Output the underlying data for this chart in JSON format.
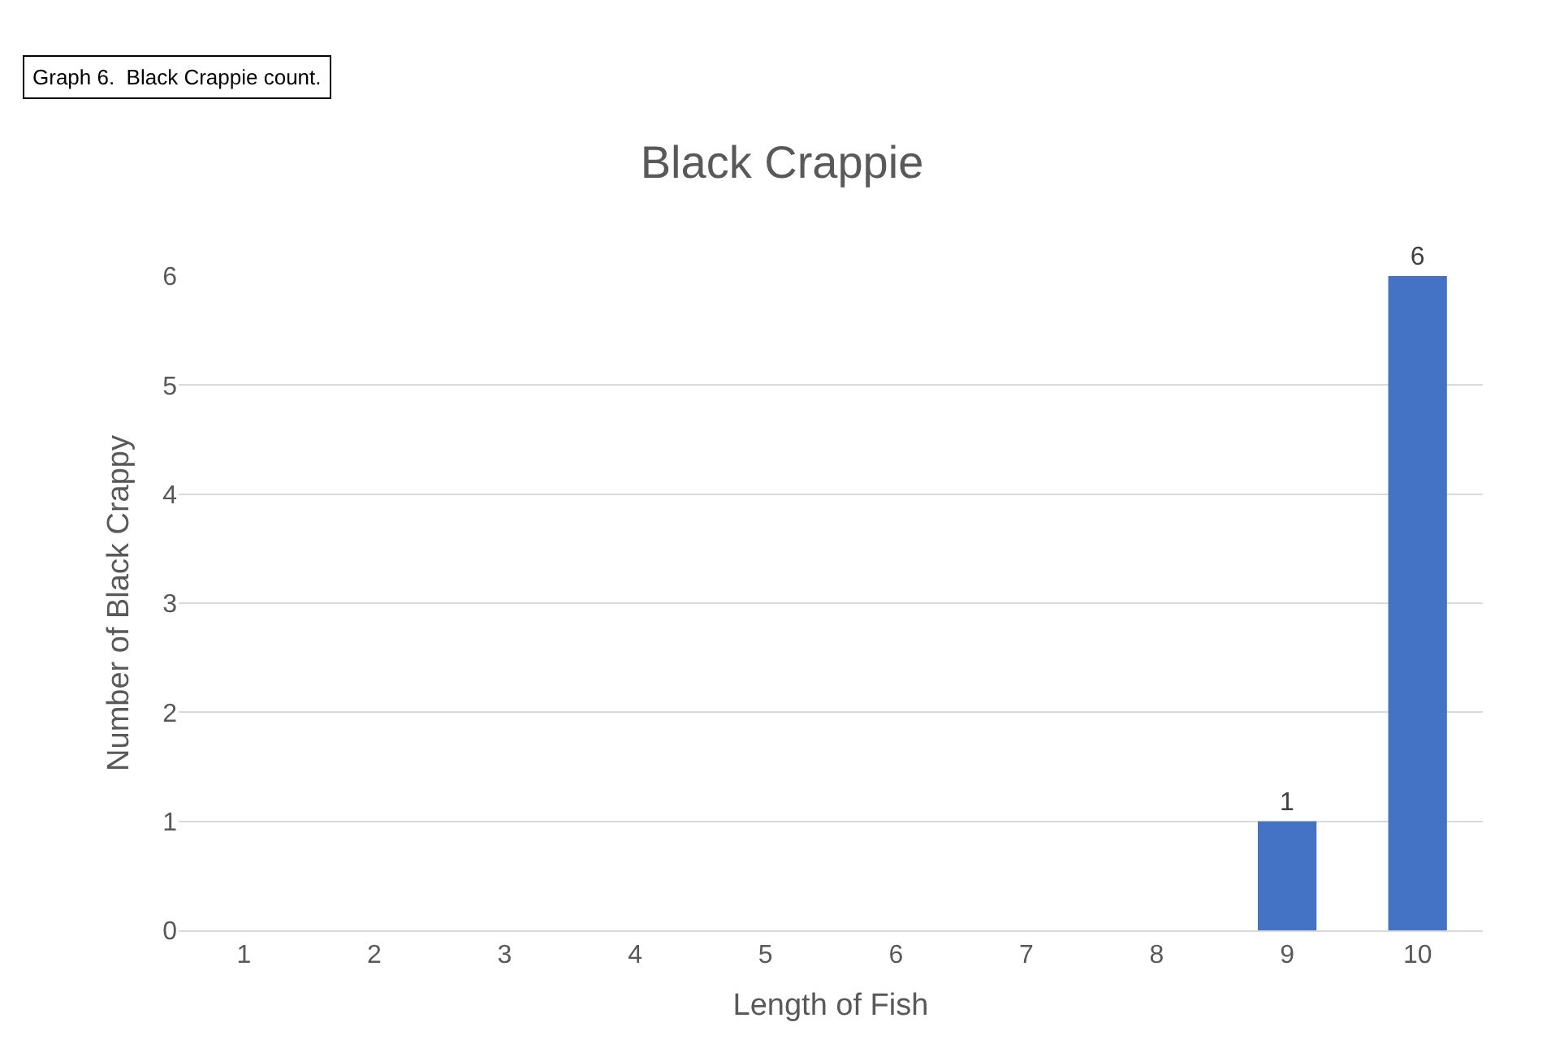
{
  "chart_data": {
    "type": "bar",
    "title": "Black Crappie",
    "xlabel": "Length of Fish",
    "ylabel": "Number of Black Crappy",
    "annotations": [
      "Graph 6.  Black Crappie count."
    ],
    "categories": [
      "1",
      "2",
      "3",
      "4",
      "5",
      "6",
      "7",
      "8",
      "9",
      "10"
    ],
    "values": [
      0,
      0,
      0,
      0,
      0,
      0,
      0,
      0,
      1,
      6
    ],
    "value_labels": [
      null,
      null,
      null,
      null,
      null,
      null,
      null,
      null,
      "1",
      "6"
    ],
    "color": "#4472c4",
    "ylim": [
      0,
      6
    ],
    "yticks": [
      0,
      1,
      2,
      3,
      4,
      5,
      6
    ],
    "grid": "y",
    "legend": false
  }
}
